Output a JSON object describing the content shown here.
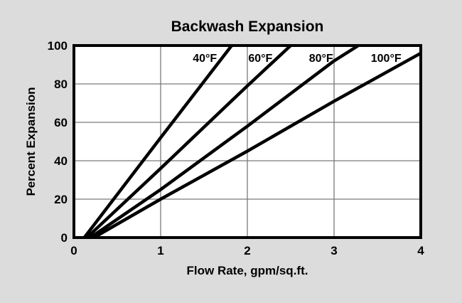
{
  "window": {
    "background_color": "#dcdcdc",
    "plot_background_color": "#ffffff",
    "border_color": "#000000",
    "gridline_color": "#7a7a7a",
    "line_color": "#000000"
  },
  "chart_data": {
    "type": "line",
    "title": "Backwash Expansion",
    "xlabel": "Flow Rate, gpm/sq.ft.",
    "ylabel": "Percent Expansion",
    "xlim": [
      0,
      4
    ],
    "ylim": [
      0,
      100
    ],
    "x_ticks": [
      0,
      1,
      2,
      3,
      4
    ],
    "y_ticks": [
      0,
      20,
      40,
      60,
      80,
      100
    ],
    "grid": true,
    "legend_position": "labels-inside-plot-top",
    "series": [
      {
        "name": "40°F",
        "points": [
          [
            0.12,
            0
          ],
          [
            1.0,
            52
          ],
          [
            1.82,
            100
          ]
        ],
        "label": "40°F",
        "label_pos": [
          1.51,
          93.5
        ]
      },
      {
        "name": "60°F",
        "points": [
          [
            0.15,
            0
          ],
          [
            1.0,
            36
          ],
          [
            2.0,
            79
          ],
          [
            2.5,
            100
          ]
        ],
        "label": "60°F",
        "label_pos": [
          2.15,
          93.5
        ]
      },
      {
        "name": "80°F",
        "points": [
          [
            0.19,
            0
          ],
          [
            1.0,
            25
          ],
          [
            2.0,
            58
          ],
          [
            3.0,
            92
          ],
          [
            3.28,
            100
          ]
        ],
        "label": "80°F",
        "label_pos": [
          2.85,
          93.5
        ]
      },
      {
        "name": "100°F",
        "points": [
          [
            0.23,
            0
          ],
          [
            1.0,
            20
          ],
          [
            2.0,
            45
          ],
          [
            3.0,
            71
          ],
          [
            4.0,
            96
          ]
        ],
        "label": "100°F",
        "label_pos": [
          3.6,
          93.5
        ]
      }
    ]
  }
}
